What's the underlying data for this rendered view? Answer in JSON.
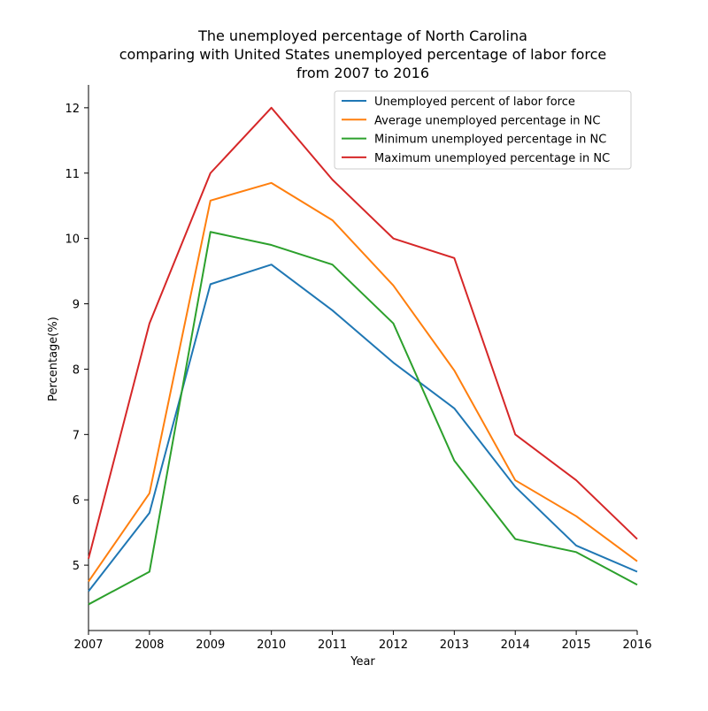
{
  "chart_data": {
    "type": "line",
    "title_lines": [
      "The unemployed percentage of North Carolina",
      "comparing with United States unemployed percentage of labor force",
      "from 2007 to 2016"
    ],
    "xlabel": "Year",
    "ylabel": "Percentage(%)",
    "x": [
      2007,
      2008,
      2009,
      2010,
      2011,
      2012,
      2013,
      2014,
      2015,
      2016
    ],
    "xlim": [
      2007,
      2016
    ],
    "ylim": [
      4.0,
      12.35
    ],
    "x_ticks": [
      "2007",
      "2008",
      "2009",
      "2010",
      "2011",
      "2012",
      "2013",
      "2014",
      "2015",
      "2016"
    ],
    "y_ticks": [
      "5",
      "6",
      "7",
      "8",
      "9",
      "10",
      "11",
      "12"
    ],
    "grid": false,
    "legend_position": "top-right",
    "series": [
      {
        "name": "Unemployed percent of labor force",
        "color": "#1f77b4",
        "values": [
          4.6,
          5.8,
          9.3,
          9.6,
          8.9,
          8.1,
          7.4,
          6.2,
          5.3,
          4.9
        ]
      },
      {
        "name": "Average unemployed percentage in NC",
        "color": "#ff7f0e",
        "values": [
          4.75,
          6.1,
          10.58,
          10.85,
          10.28,
          9.28,
          7.98,
          6.3,
          5.75,
          5.06
        ]
      },
      {
        "name": "Minimum unemployed percentage in NC",
        "color": "#2ca02c",
        "values": [
          4.4,
          4.9,
          10.1,
          9.9,
          9.6,
          8.7,
          6.6,
          5.4,
          5.2,
          4.7
        ]
      },
      {
        "name": "Maximum unemployed percentage in NC",
        "color": "#d62728",
        "values": [
          5.1,
          8.7,
          11.0,
          12.0,
          10.9,
          10.0,
          9.7,
          7.0,
          6.3,
          5.4
        ]
      }
    ]
  }
}
